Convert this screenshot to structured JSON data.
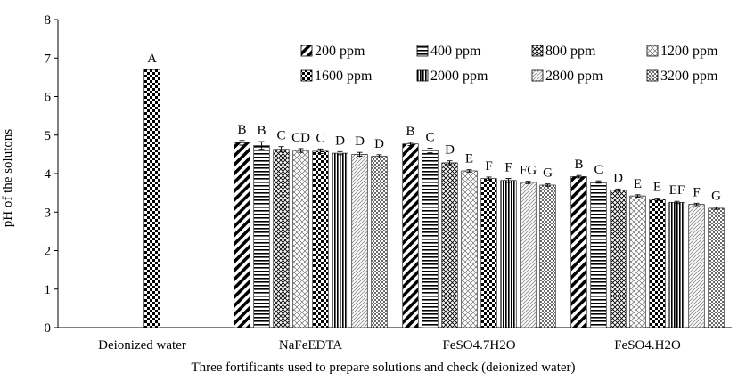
{
  "chart_data": {
    "type": "bar",
    "title": "",
    "xlabel": "Three fortificants used to prepare solutions and check (deionized water)",
    "ylabel": "pH of the solutons",
    "ylim": [
      0,
      8
    ],
    "yticks": [
      "0",
      "1",
      "2",
      "3",
      "4",
      "5",
      "6",
      "7",
      "8"
    ],
    "grid": false,
    "legend_position": "top-right",
    "categories": [
      "Deionized water",
      "NaFeEDTA",
      "FeSO4.7H2O",
      "FeSO4.H2O"
    ],
    "series": [
      {
        "name": "200 ppm",
        "pattern": "diag-thick",
        "values": [
          null,
          4.8,
          4.77,
          3.92
        ],
        "errors": [
          null,
          0.06,
          0.04,
          0.03
        ],
        "letters": [
          "",
          "B",
          "B",
          "B"
        ]
      },
      {
        "name": "400 ppm",
        "pattern": "horizontal",
        "values": [
          null,
          4.73,
          4.6,
          3.78
        ],
        "errors": [
          null,
          0.1,
          0.06,
          0.03
        ],
        "letters": [
          "",
          "B",
          "C",
          "C"
        ]
      },
      {
        "name": "800 ppm",
        "pattern": "crosshatch",
        "values": [
          null,
          4.63,
          4.28,
          3.57
        ],
        "errors": [
          null,
          0.07,
          0.05,
          0.03
        ],
        "letters": [
          "",
          "C",
          "D",
          "D"
        ]
      },
      {
        "name": "1200 ppm",
        "pattern": "diamond",
        "values": [
          null,
          4.6,
          4.07,
          3.42
        ],
        "errors": [
          null,
          0.05,
          0.03,
          0.03
        ],
        "letters": [
          "",
          "CD",
          "E",
          "E"
        ]
      },
      {
        "name": "1600 ppm",
        "pattern": "checker",
        "values": [
          6.7,
          4.58,
          3.87,
          3.33
        ],
        "errors": [
          null,
          0.06,
          0.04,
          0.03
        ],
        "letters": [
          "A",
          "C",
          "F",
          "E"
        ]
      },
      {
        "name": "2000 ppm",
        "pattern": "vertical",
        "values": [
          null,
          4.53,
          3.82,
          3.25
        ],
        "errors": [
          null,
          0.04,
          0.05,
          0.03
        ],
        "letters": [
          "",
          "D",
          "F",
          "EF"
        ]
      },
      {
        "name": "2800 ppm",
        "pattern": "diag-light",
        "values": [
          null,
          4.5,
          3.77,
          3.2
        ],
        "errors": [
          null,
          0.05,
          0.03,
          0.03
        ],
        "letters": [
          "",
          "D",
          "FG",
          "F"
        ]
      },
      {
        "name": "3200 ppm",
        "pattern": "dots",
        "values": [
          null,
          4.45,
          3.7,
          3.1
        ],
        "errors": [
          null,
          0.04,
          0.03,
          0.03
        ],
        "letters": [
          "",
          "D",
          "G",
          "G"
        ]
      }
    ]
  }
}
